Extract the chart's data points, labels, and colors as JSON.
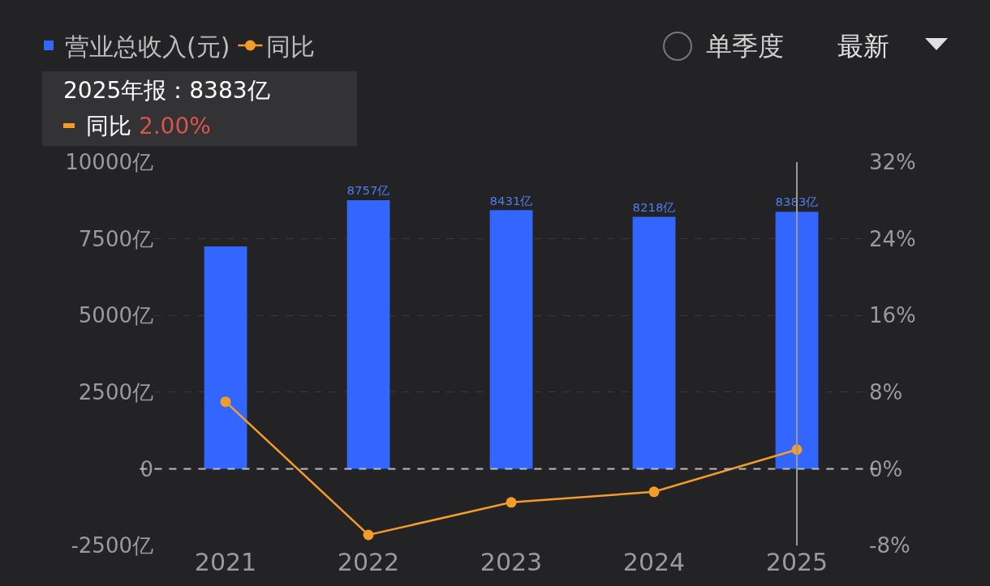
{
  "chart_data": {
    "type": "bar",
    "categories": [
      "2021",
      "2022",
      "2023",
      "2024",
      "2025"
    ],
    "series": [
      {
        "name": "营业总收入(元)",
        "color": "#3366ff",
        "values": [
          7250,
          8757,
          8431,
          8218,
          8383
        ],
        "value_labels": [
          null,
          "8757亿",
          "8431亿",
          "8218亿",
          "8383亿"
        ]
      },
      {
        "name": "同比",
        "type": "line",
        "axis": "y2",
        "color": "#f39c28",
        "marker": "circle",
        "line_style": "solid",
        "values": [
          7.0,
          -6.9,
          -3.5,
          -2.4,
          2.0
        ]
      }
    ],
    "ylim": [
      -2500,
      10000
    ],
    "yticks": [
      {
        "value": -2500,
        "label": "-2500亿"
      },
      0,
      {
        "value": 2500,
        "label": "2500亿"
      },
      {
        "value": 5000,
        "label": "5000亿"
      },
      {
        "value": 7500,
        "label": "7500亿"
      },
      {
        "value": 10000,
        "label": "10000亿"
      }
    ],
    "y2lim": [
      -8,
      32
    ],
    "y2ticks": [
      {
        "value": -8,
        "label": "-8%"
      },
      {
        "value": 0,
        "label": "0%"
      },
      {
        "value": 8,
        "label": "8%"
      },
      {
        "value": 16,
        "label": "16%"
      },
      {
        "value": 24,
        "label": "24%"
      },
      {
        "value": 32,
        "label": "32%"
      }
    ],
    "grid": "y",
    "legend": "top left",
    "ref_lines": [
      {
        "axis": "y",
        "value": 0,
        "color": "#bbbbbb",
        "line_style": "dashed"
      },
      {
        "axis": "x",
        "value": "2025",
        "color": "#9a9a9a",
        "line_style": "solid"
      }
    ],
    "annotations": [
      "单季度",
      "最新",
      "2025年报：8383亿",
      "同比 2.00%"
    ]
  }
}
